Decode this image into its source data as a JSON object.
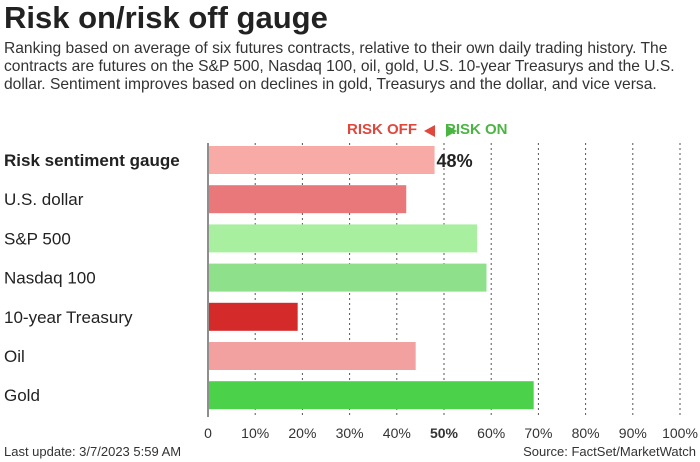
{
  "title": "Risk on/risk off gauge",
  "subtitle": "Ranking based on average of six futures contracts, relative to their own daily trading history. The contracts are futures on the S&P 500, Nasdaq 100, oil, gold, U.S. 10-year Treasurys and the U.S. dollar. Sentiment improves based on declines in gold, Treasurys and the dollar, and vice versa.",
  "legend": {
    "risk_off": "RISK OFF",
    "risk_on": "RISK ON"
  },
  "footer": {
    "last_update": "Last update: 3/7/2023 5:59 AM",
    "source": "Source: FactSet/MarketWatch"
  },
  "chart_data": {
    "type": "bar",
    "orientation": "horizontal",
    "categories": [
      "Risk sentiment gauge",
      "U.S. dollar",
      "S&P 500",
      "Nasdaq 100",
      "10-year Treasury",
      "Oil",
      "Gold"
    ],
    "values": [
      48,
      42,
      57,
      59,
      19,
      44,
      69
    ],
    "bar_colors": [
      "#f8aaa6",
      "#e8787a",
      "#a8f0a0",
      "#8fe08a",
      "#d42a2a",
      "#f2a0a0",
      "#4cd14a"
    ],
    "value_label": "48%",
    "xlim": [
      0,
      100
    ],
    "xticks": [
      "0",
      "10%",
      "20%",
      "30%",
      "40%",
      "50%",
      "60%",
      "70%",
      "80%",
      "90%",
      "100%"
    ],
    "grid": "vertical dotted",
    "highlight_tick": "50%"
  }
}
